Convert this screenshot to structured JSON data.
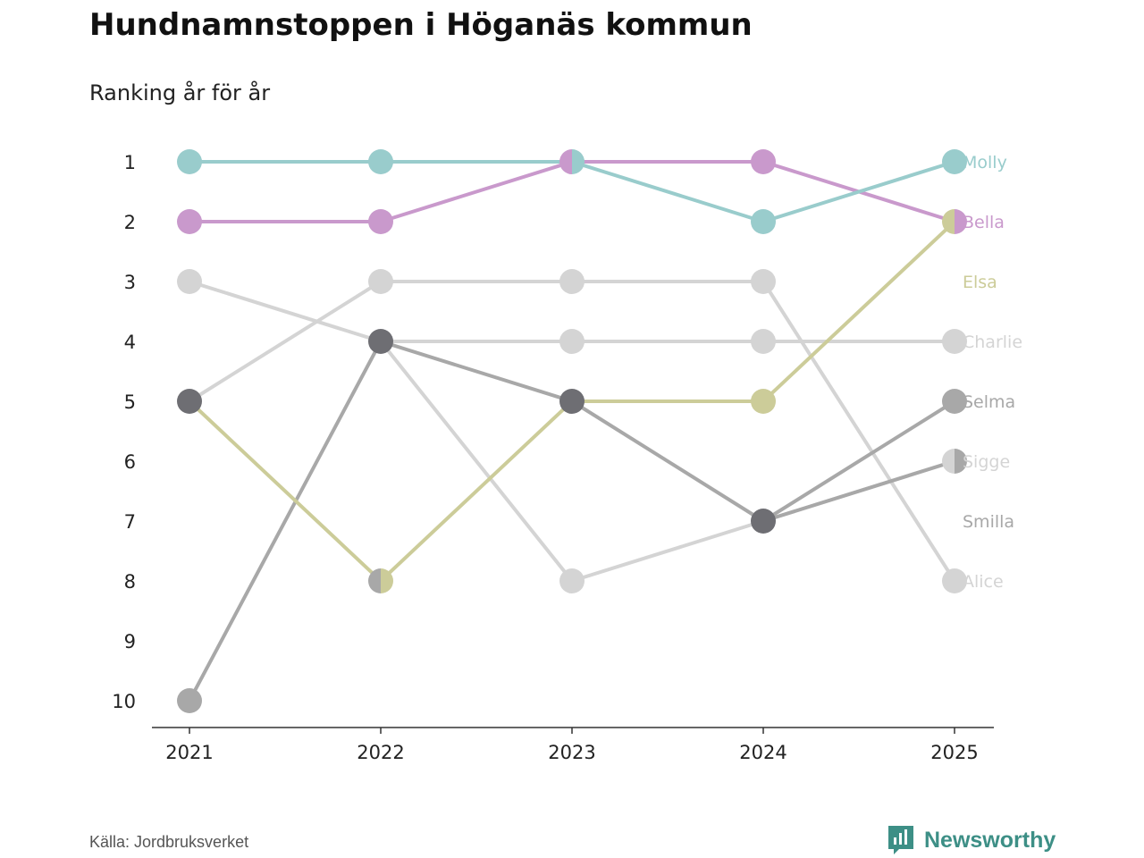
{
  "title": "Hundnamnstoppen i Höganäs kommun",
  "subtitle": "Ranking år för år",
  "source": "Källa: Jordbruksverket",
  "brand": {
    "name": "Newsworthy",
    "icon": "newsworthy-logo-icon",
    "color": "#3d8f86"
  },
  "chart_data": {
    "type": "line",
    "title": "Hundnamnstoppen i Höganäs kommun",
    "subtitle": "Ranking år för år",
    "categories": [
      "2021",
      "2022",
      "2023",
      "2024",
      "2025"
    ],
    "y_ticks": [
      "1",
      "2",
      "3",
      "4",
      "5",
      "6",
      "7",
      "8",
      "9",
      "10"
    ],
    "ylim": [
      1,
      10
    ],
    "y_inverted": true,
    "grid": false,
    "legend": "labels at line ends (right)",
    "series": [
      {
        "name": "Charlie",
        "color": "#d4d4d4",
        "values": [
          3,
          4,
          4,
          4,
          4
        ]
      },
      {
        "name": "Alice",
        "color": "#d4d4d4",
        "values": [
          5,
          3,
          3,
          3,
          8
        ]
      },
      {
        "name": "Sigge",
        "color": "#d4d4d4",
        "values": [
          null,
          4,
          8,
          7,
          6
        ]
      },
      {
        "name": "Smilla",
        "color": "#a8a8a8",
        "values": [
          10,
          4,
          5,
          7,
          6
        ]
      },
      {
        "name": "Selma",
        "color": "#a8a8a8",
        "values": [
          null,
          8,
          null,
          7,
          5
        ]
      },
      {
        "name": "Elsa",
        "color": "#cccc99",
        "values": [
          5,
          8,
          5,
          5,
          2
        ]
      },
      {
        "name": "Bella",
        "color": "#c999cc",
        "values": [
          2,
          2,
          1,
          1,
          2
        ]
      },
      {
        "name": "Molly",
        "color": "#99cccc",
        "values": [
          1,
          1,
          1,
          2,
          1
        ]
      }
    ],
    "overlap_markers": [
      {
        "category": "2021",
        "value": 5,
        "color": "#6e6e73"
      },
      {
        "category": "2022",
        "value": 4,
        "color": "#6e6e73"
      },
      {
        "category": "2023",
        "value": 5,
        "color": "#6e6e73"
      },
      {
        "category": "2024",
        "value": 7,
        "color": "#6e6e73"
      }
    ],
    "end_labels": [
      {
        "name": "Molly",
        "rank": 1,
        "color": "#99cccc"
      },
      {
        "name": "Bella",
        "rank": 2,
        "color": "#c999cc"
      },
      {
        "name": "Elsa",
        "rank": 3,
        "color": "#cccc99"
      },
      {
        "name": "Charlie",
        "rank": 4,
        "color": "#d4d4d4"
      },
      {
        "name": "Selma",
        "rank": 5,
        "color": "#a8a8a8"
      },
      {
        "name": "Sigge",
        "rank": 6,
        "color": "#d4d4d4"
      },
      {
        "name": "Smilla",
        "rank": 7,
        "color": "#a8a8a8"
      },
      {
        "name": "Alice",
        "rank": 8,
        "color": "#d4d4d4"
      }
    ]
  }
}
